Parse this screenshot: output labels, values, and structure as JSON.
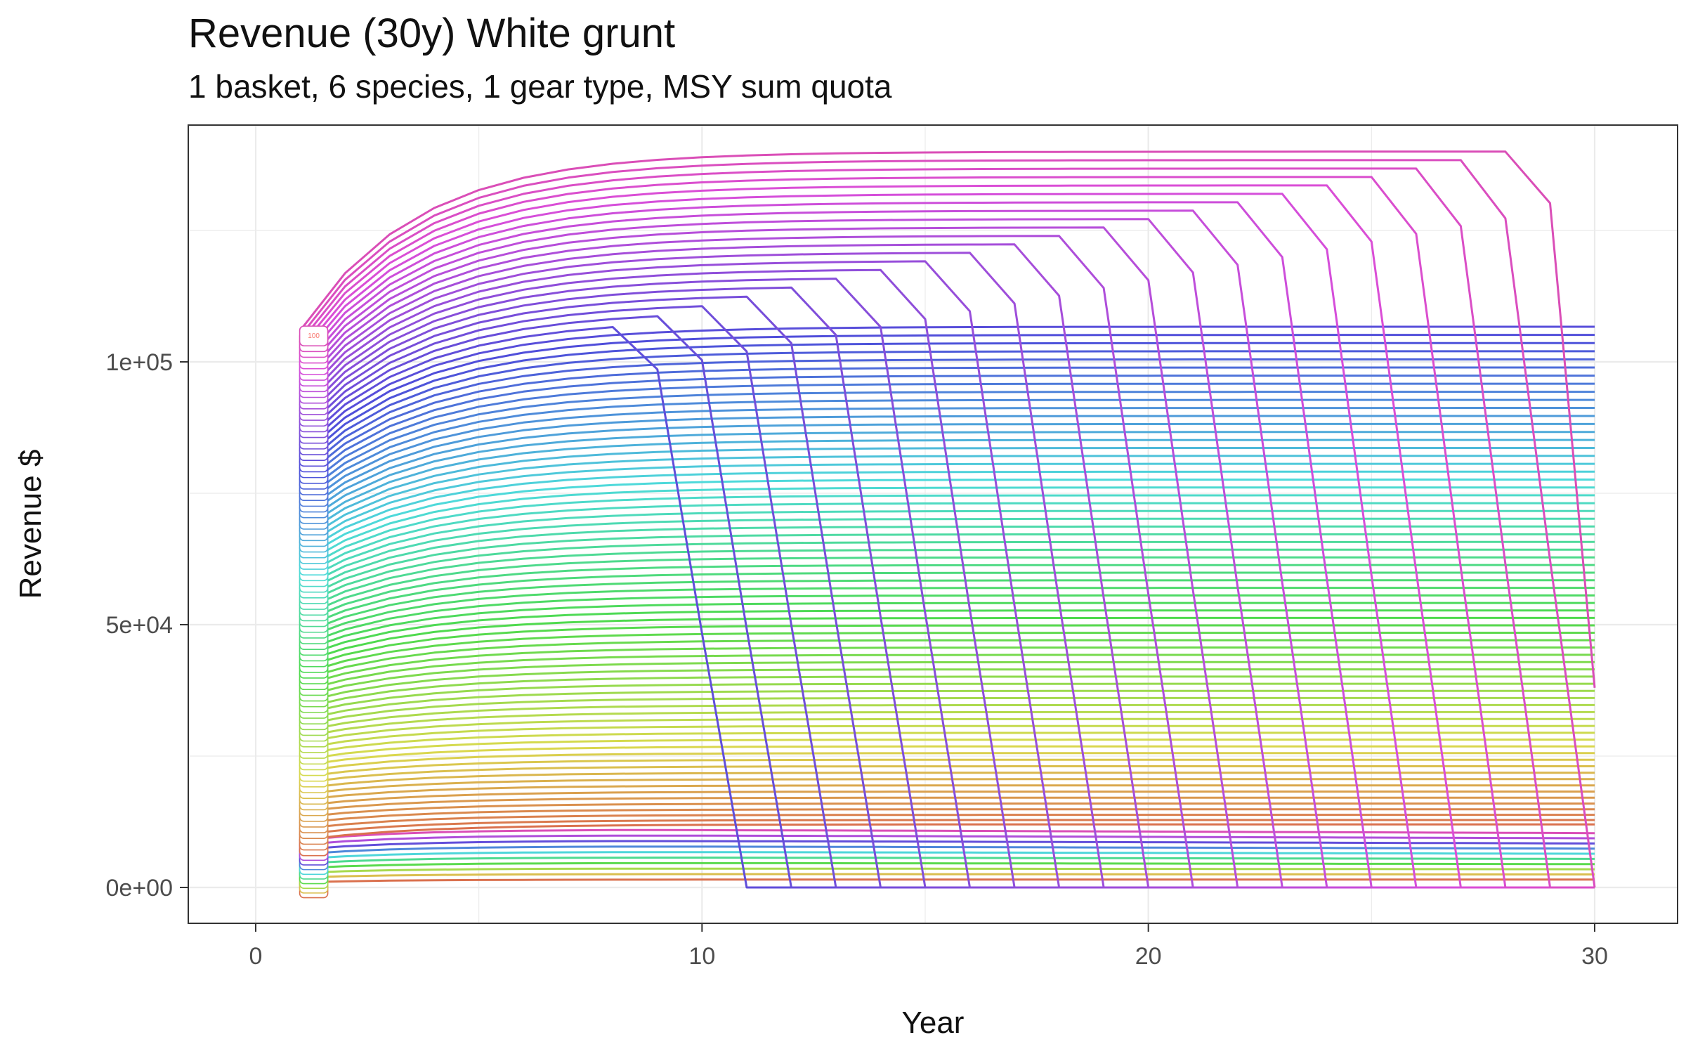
{
  "chart_data": {
    "type": "line",
    "title": "Revenue (30y) White grunt",
    "subtitle": "1 basket, 6 species, 1 gear type, MSY sum quota",
    "xlabel": "Year",
    "ylabel": "Revenue $",
    "xlim": [
      -1.5,
      31.5
    ],
    "ylim": [
      -7000,
      145000
    ],
    "x_ticks": [
      0,
      10,
      20,
      30
    ],
    "x_tick_labels": [
      "0",
      "10",
      "20",
      "30"
    ],
    "y_ticks": [
      0,
      50000,
      100000
    ],
    "y_tick_labels": [
      "0e+00",
      "5e+04",
      "1e+05"
    ],
    "grid": true,
    "legend": "none",
    "series_label_text": "100",
    "series_generation": {
      "x": "years 1 to 30",
      "lower_scenarios": {
        "count": 10,
        "start_value": 1000,
        "plateau_value": 10500,
        "no_collapse": true
      },
      "upper_scenarios": {
        "count": 90,
        "start_value": 9000,
        "plateau_value_low": 12000,
        "plateau_value_high": 140000,
        "collapse_years": [
          10,
          11,
          12,
          13,
          14,
          15,
          16,
          17,
          18,
          19,
          20,
          21,
          22,
          23,
          24,
          25,
          26,
          27,
          28,
          29,
          30
        ]
      }
    },
    "color_scale": "hue palette, red through orange, green, blue, purple, pink"
  }
}
